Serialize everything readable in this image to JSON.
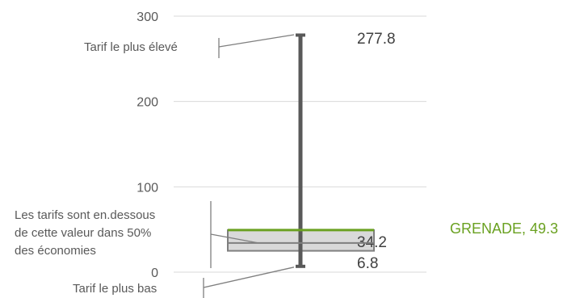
{
  "chart_data": {
    "type": "box",
    "ylim": [
      0,
      300
    ],
    "yticks": [
      0,
      100,
      200,
      300
    ],
    "grid": true,
    "stats": {
      "min": 6.8,
      "max": 277.8,
      "median": 34.2,
      "q1": 25,
      "q3": 44,
      "highlight": 49.3
    },
    "labels": {
      "max": "277.8",
      "median": "34.2",
      "min": "6.8",
      "highlight": "GRENADE, 49.3"
    },
    "annotations": {
      "max": "Tarif le plus élevé",
      "median_line1": "Les tarifs sont en.dessous",
      "median_line2": "de cette valeur dans 50%",
      "median_line3": "des économies",
      "min": "Tarif le plus bas"
    },
    "colors": {
      "whisker": "#595959",
      "box_fill": "#d9d9d9",
      "box_stroke": "#7f7f7f",
      "highlight": "#6aa121",
      "grid": "#d9d9d9",
      "leader": "#7f7f7f"
    }
  }
}
